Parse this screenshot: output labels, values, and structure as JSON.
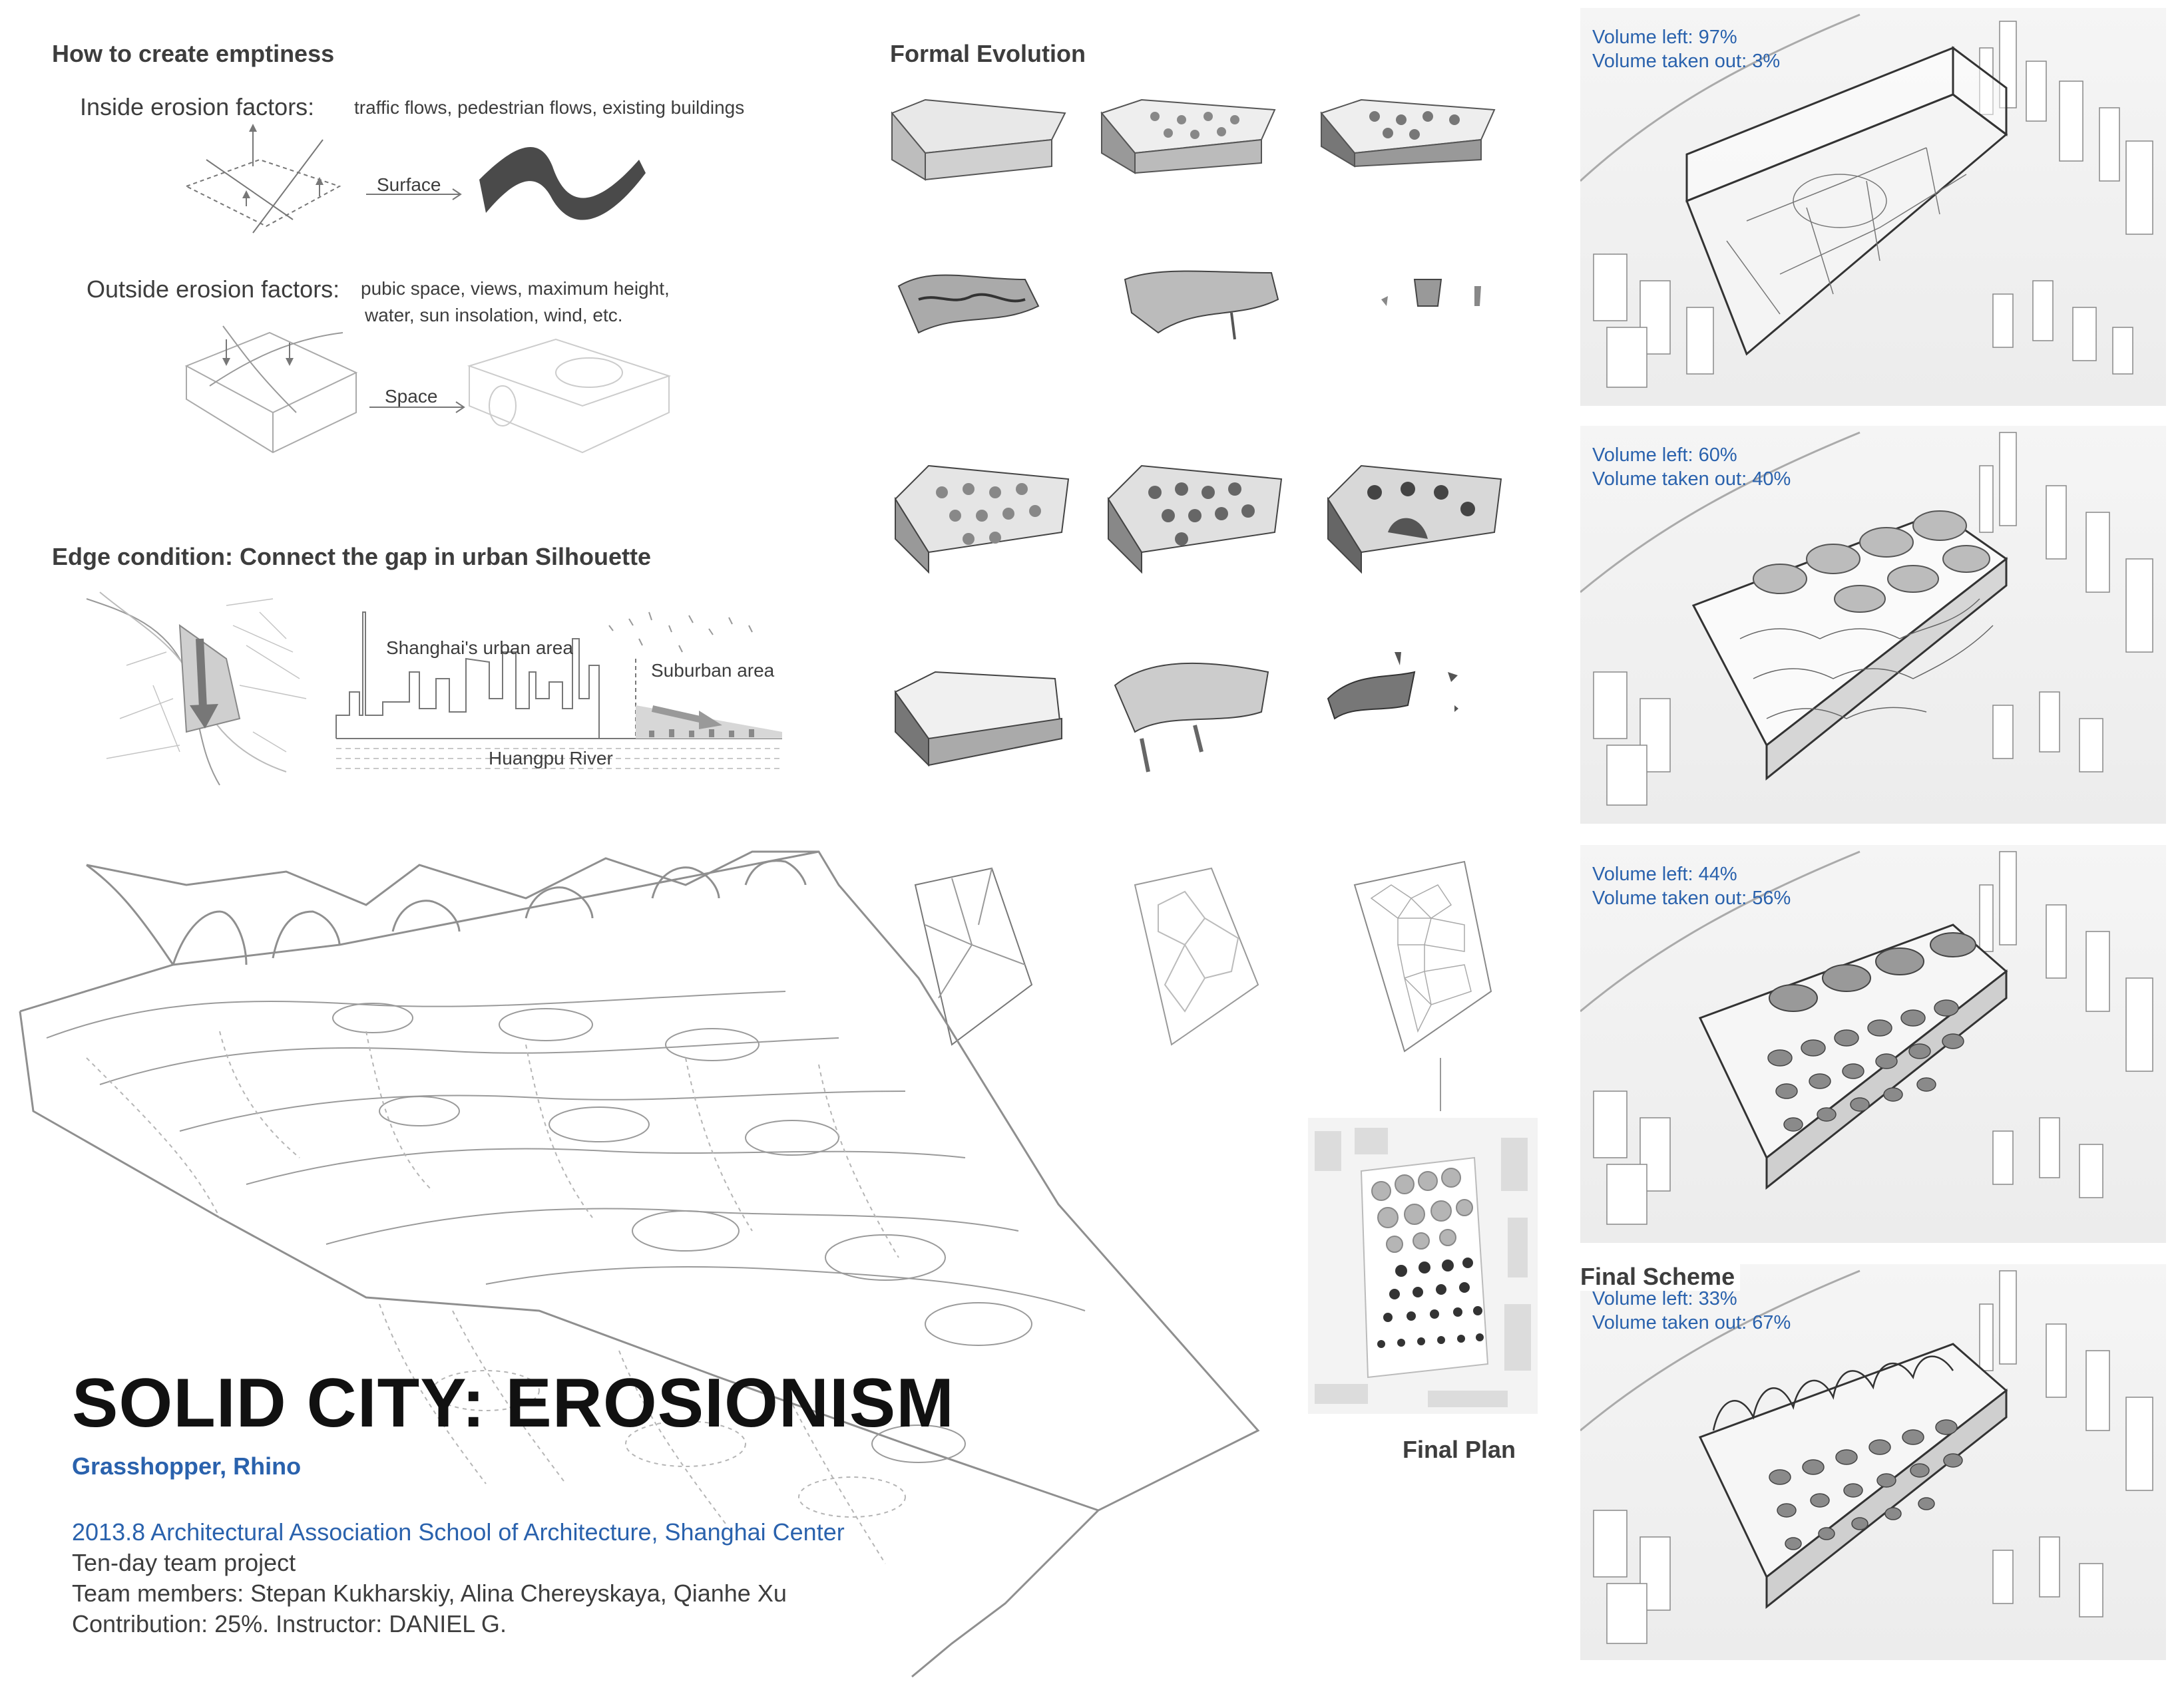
{
  "left": {
    "emptiness_title": "How to create emptiness",
    "inside_label": "Inside erosion factors:",
    "inside_desc": "traffic flows, pedestrian flows, existing buildings",
    "surface_label": "Surface",
    "outside_label": "Outside erosion factors:",
    "outside_desc_1": "pubic space, views, maximum height,",
    "outside_desc_2": "water, sun insolation, wind, etc.",
    "space_label": "Space",
    "edge_title": "Edge condition: Connect the gap in urban Silhouette",
    "urban_area": "Shanghai's urban area",
    "suburban_area": "Suburban area",
    "river": "Huangpu River"
  },
  "middle": {
    "formal_title": "Formal Evolution",
    "final_plan": "Final Plan"
  },
  "title_block": {
    "title": "SOLID CITY: EROSIONISM",
    "tools": "Grasshopper, Rhino",
    "line1": "2013.8  Architectural Association School of Architecture, Shanghai Center",
    "line2": "Ten-day team project",
    "line3": "Team members: Stepan Kukharskiy, Alina Chereyskaya, Qianhe Xu",
    "line4": "Contribution: 25%. Instructor: DANIEL G."
  },
  "right": {
    "final_scheme": "Final Scheme",
    "panels": [
      {
        "left": "Volume left: 97%",
        "out": "Volume taken out: 3%"
      },
      {
        "left": "Volume left: 60%",
        "out": "Volume taken out: 40%"
      },
      {
        "left": "Volume left: 44%",
        "out": "Volume taken out: 56%"
      },
      {
        "left": "Volume left: 33%",
        "out": "Volume taken out: 67%"
      }
    ]
  },
  "colors": {
    "accent_blue": "#2a62ad",
    "text_gray": "#3d3d3d",
    "line_gray": "#8a8a8a"
  }
}
